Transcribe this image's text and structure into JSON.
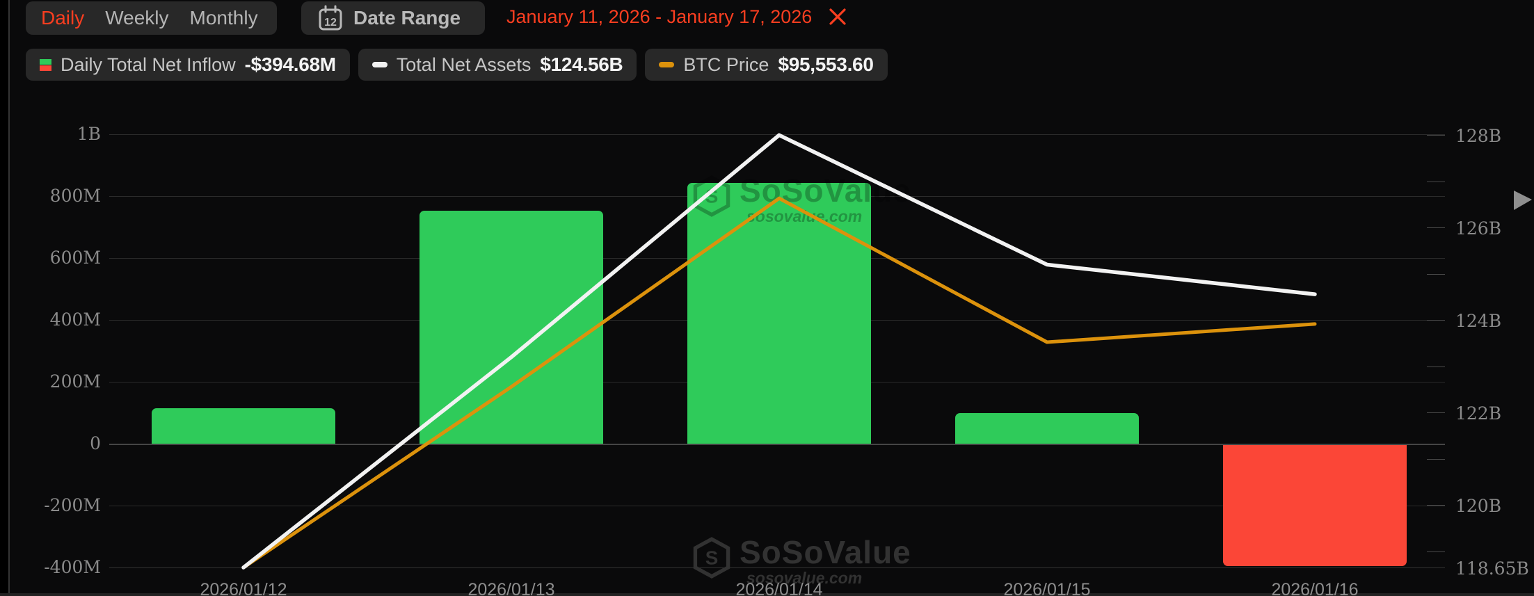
{
  "toolbar": {
    "tabs": [
      {
        "label": "Daily",
        "active": true
      },
      {
        "label": "Weekly",
        "active": false
      },
      {
        "label": "Monthly",
        "active": false
      }
    ],
    "date_range_button": {
      "label": "Date Range",
      "icon": "calendar-icon",
      "icon_day": "12"
    },
    "date_range_value": "January 11, 2026 - January 17, 2026"
  },
  "legend": [
    {
      "label": "Daily Total Net Inflow",
      "value": "-$394.68M",
      "swatch": "bar-split",
      "swatch_colors": [
        "#2fcb5a",
        "#fb4637"
      ]
    },
    {
      "label": "Total Net Assets",
      "value": "$124.56B",
      "swatch": "dash",
      "swatch_color": "#f2f2f2"
    },
    {
      "label": "BTC Price",
      "value": "$95,553.60",
      "swatch": "dash",
      "swatch_color": "#dc920c"
    }
  ],
  "watermark": {
    "title": "SoSoValue",
    "subtitle": "sosovalue.com",
    "logo_letter": "S"
  },
  "colors": {
    "accent": "#fa3e20",
    "bar_positive": "#2fcb5a",
    "bar_negative": "#fb4637",
    "total_net_assets_line": "#f2f2f2",
    "btc_price_line": "#dc920c"
  },
  "chart_data": {
    "type": "combo",
    "categories": [
      "2026/01/12",
      "2026/01/13",
      "2026/01/14",
      "2026/01/15",
      "2026/01/16"
    ],
    "series": [
      {
        "name": "Daily Total Net Inflow",
        "type": "bar",
        "axis": "left",
        "unit": "USD millions",
        "values": [
          115,
          753,
          843,
          100,
          -394.68
        ],
        "last_display_value": "-$394.68M",
        "positive_color": "#2fcb5a",
        "negative_color": "#fb4637"
      },
      {
        "name": "Total Net Assets",
        "type": "line",
        "axis": "right",
        "unit": "USD billions",
        "values": [
          118.65,
          123.2,
          128.0,
          125.2,
          124.56
        ],
        "last_display_value": "$124.56B",
        "color": "#f2f2f2"
      },
      {
        "name": "BTC Price",
        "type": "line",
        "axis": "hidden",
        "unit": "USD",
        "last_value": 95553.6,
        "last_display_value": "$95,553.60",
        "y_frac": [
          1.0,
          0.583,
          0.148,
          0.48,
          0.438
        ],
        "color": "#dc920c"
      }
    ],
    "left_axis": {
      "labels": [
        "1B",
        "800M",
        "600M",
        "400M",
        "200M",
        "0",
        "-200M",
        "-400M"
      ],
      "label_values": [
        1000,
        800,
        600,
        400,
        200,
        0,
        -200,
        -400
      ],
      "min": -400,
      "max": 1000
    },
    "right_axis": {
      "labels": [
        "128B",
        "126B",
        "124B",
        "122B",
        "120B",
        "118.65B"
      ],
      "label_values": [
        128,
        126,
        124,
        122,
        120,
        118.65
      ],
      "min": 118.65,
      "max": 128.02,
      "minor_tick_step": 1
    },
    "grid": "horizontal",
    "legend_position": "top-left"
  }
}
